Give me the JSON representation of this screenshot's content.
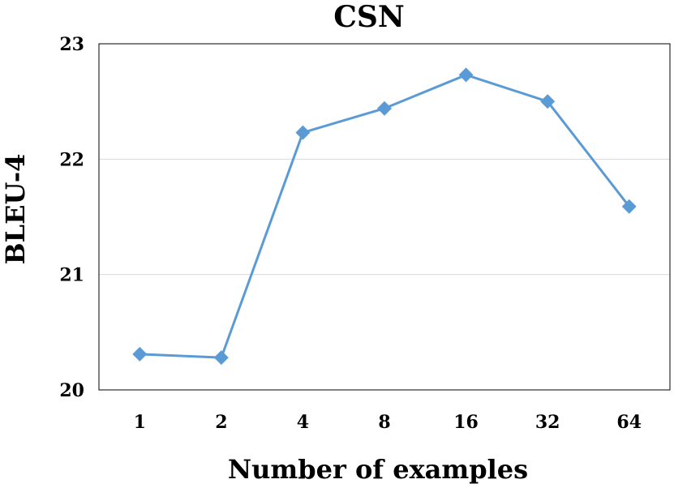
{
  "chart_data": {
    "type": "line",
    "title": "CSN",
    "xlabel": "Number of examples",
    "ylabel": "BLEU-4",
    "categories": [
      "1",
      "2",
      "4",
      "8",
      "16",
      "32",
      "64"
    ],
    "series": [
      {
        "values": [
          20.31,
          20.28,
          22.23,
          22.44,
          22.73,
          22.5,
          21.59
        ]
      }
    ],
    "ylim": [
      20,
      23
    ],
    "yticks": [
      20,
      21,
      22,
      23
    ],
    "grid": true,
    "legend": "none",
    "marker": "diamond",
    "color": "#5b9bd5"
  }
}
